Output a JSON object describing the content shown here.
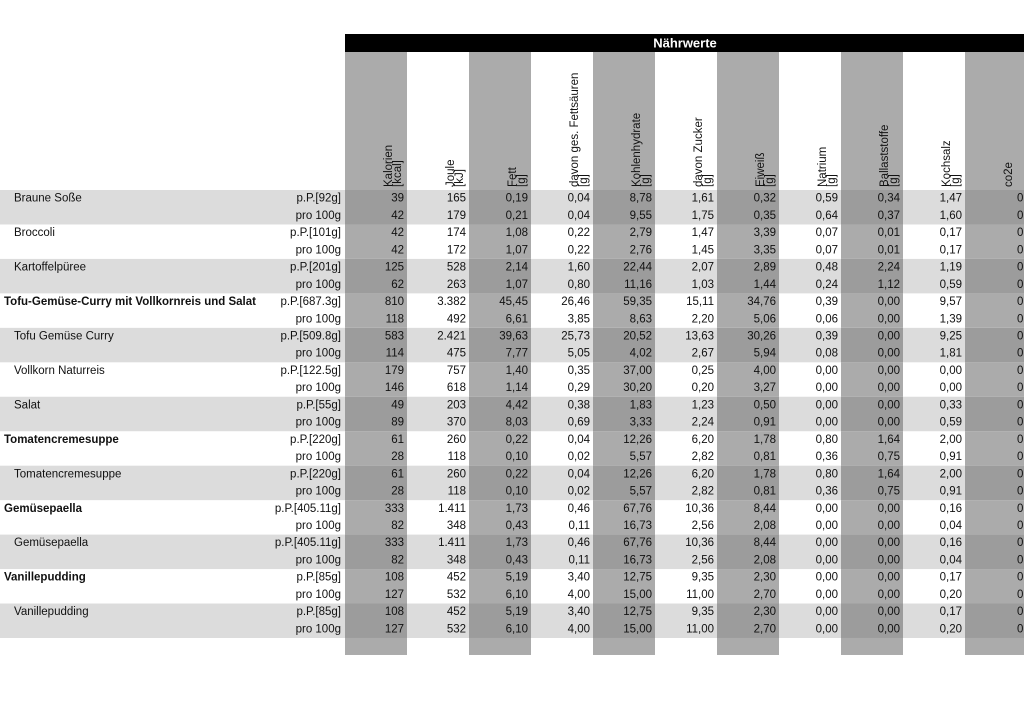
{
  "header": {
    "title": "Nährwerte",
    "columns": [
      {
        "label": "Kalorien",
        "unit": "[kcal]"
      },
      {
        "label": "Joule",
        "unit": "[kJ]"
      },
      {
        "label": "Fett",
        "unit": "[g]"
      },
      {
        "label": "davon ges. Fettsäuren",
        "unit": "[g]"
      },
      {
        "label": "Kohlenhydrate",
        "unit": "[g]"
      },
      {
        "label": "davon Zucker",
        "unit": "[g]"
      },
      {
        "label": "Eiweiß",
        "unit": "[g]"
      },
      {
        "label": "Natrium",
        "unit": "[g]"
      },
      {
        "label": "Ballaststoffe",
        "unit": "[g]"
      },
      {
        "label": "Kochsalz",
        "unit": "[g]"
      },
      {
        "label": "co2e"
      }
    ]
  },
  "table": {
    "items": [
      {
        "name": "Braune Soße",
        "bold": false,
        "rows": [
          {
            "portion": "p.P.[92g]",
            "values": [
              "39",
              "165",
              "0,19",
              "0,04",
              "8,78",
              "1,61",
              "0,32",
              "0,59",
              "0,34",
              "1,47",
              "0"
            ]
          },
          {
            "portion": "pro 100g",
            "values": [
              "42",
              "179",
              "0,21",
              "0,04",
              "9,55",
              "1,75",
              "0,35",
              "0,64",
              "0,37",
              "1,60",
              "0"
            ]
          }
        ]
      },
      {
        "name": "Broccoli",
        "bold": false,
        "rows": [
          {
            "portion": "p.P.[101g]",
            "values": [
              "42",
              "174",
              "1,08",
              "0,22",
              "2,79",
              "1,47",
              "3,39",
              "0,07",
              "0,01",
              "0,17",
              "0"
            ]
          },
          {
            "portion": "pro 100g",
            "values": [
              "42",
              "172",
              "1,07",
              "0,22",
              "2,76",
              "1,45",
              "3,35",
              "0,07",
              "0,01",
              "0,17",
              "0"
            ]
          }
        ]
      },
      {
        "name": "Kartoffelpüree",
        "bold": false,
        "rows": [
          {
            "portion": "p.P.[201g]",
            "values": [
              "125",
              "528",
              "2,14",
              "1,60",
              "22,44",
              "2,07",
              "2,89",
              "0,48",
              "2,24",
              "1,19",
              "0"
            ]
          },
          {
            "portion": "pro 100g",
            "values": [
              "62",
              "263",
              "1,07",
              "0,80",
              "11,16",
              "1,03",
              "1,44",
              "0,24",
              "1,12",
              "0,59",
              "0"
            ]
          }
        ]
      },
      {
        "name": "Tofu-Gemüse-Curry mit Vollkornreis und Salat",
        "bold": true,
        "rows": [
          {
            "portion": "p.P.[687.3g]",
            "values": [
              "810",
              "3.382",
              "45,45",
              "26,46",
              "59,35",
              "15,11",
              "34,76",
              "0,39",
              "0,00",
              "9,57",
              "0"
            ]
          },
          {
            "portion": "pro 100g",
            "values": [
              "118",
              "492",
              "6,61",
              "3,85",
              "8,63",
              "2,20",
              "5,06",
              "0,06",
              "0,00",
              "1,39",
              "0"
            ]
          }
        ]
      },
      {
        "name": "Tofu Gemüse Curry",
        "bold": false,
        "rows": [
          {
            "portion": "p.P.[509.8g]",
            "values": [
              "583",
              "2.421",
              "39,63",
              "25,73",
              "20,52",
              "13,63",
              "30,26",
              "0,39",
              "0,00",
              "9,25",
              "0"
            ]
          },
          {
            "portion": "pro 100g",
            "values": [
              "114",
              "475",
              "7,77",
              "5,05",
              "4,02",
              "2,67",
              "5,94",
              "0,08",
              "0,00",
              "1,81",
              "0"
            ]
          }
        ]
      },
      {
        "name": "Vollkorn Naturreis",
        "bold": false,
        "rows": [
          {
            "portion": "p.P.[122.5g]",
            "values": [
              "179",
              "757",
              "1,40",
              "0,35",
              "37,00",
              "0,25",
              "4,00",
              "0,00",
              "0,00",
              "0,00",
              "0"
            ]
          },
          {
            "portion": "pro 100g",
            "values": [
              "146",
              "618",
              "1,14",
              "0,29",
              "30,20",
              "0,20",
              "3,27",
              "0,00",
              "0,00",
              "0,00",
              "0"
            ]
          }
        ]
      },
      {
        "name": "Salat",
        "bold": false,
        "rows": [
          {
            "portion": "p.P.[55g]",
            "values": [
              "49",
              "203",
              "4,42",
              "0,38",
              "1,83",
              "1,23",
              "0,50",
              "0,00",
              "0,00",
              "0,33",
              "0"
            ]
          },
          {
            "portion": "pro 100g",
            "values": [
              "89",
              "370",
              "8,03",
              "0,69",
              "3,33",
              "2,24",
              "0,91",
              "0,00",
              "0,00",
              "0,59",
              "0"
            ]
          }
        ]
      },
      {
        "name": "Tomatencremesuppe",
        "bold": true,
        "rows": [
          {
            "portion": "p.P.[220g]",
            "values": [
              "61",
              "260",
              "0,22",
              "0,04",
              "12,26",
              "6,20",
              "1,78",
              "0,80",
              "1,64",
              "2,00",
              "0"
            ]
          },
          {
            "portion": "pro 100g",
            "values": [
              "28",
              "118",
              "0,10",
              "0,02",
              "5,57",
              "2,82",
              "0,81",
              "0,36",
              "0,75",
              "0,91",
              "0"
            ]
          }
        ]
      },
      {
        "name": "Tomatencremesuppe",
        "bold": false,
        "rows": [
          {
            "portion": "p.P.[220g]",
            "values": [
              "61",
              "260",
              "0,22",
              "0,04",
              "12,26",
              "6,20",
              "1,78",
              "0,80",
              "1,64",
              "2,00",
              "0"
            ]
          },
          {
            "portion": "pro 100g",
            "values": [
              "28",
              "118",
              "0,10",
              "0,02",
              "5,57",
              "2,82",
              "0,81",
              "0,36",
              "0,75",
              "0,91",
              "0"
            ]
          }
        ]
      },
      {
        "name": "Gemüsepaella",
        "bold": true,
        "rows": [
          {
            "portion": "p.P.[405.11g]",
            "values": [
              "333",
              "1.411",
              "1,73",
              "0,46",
              "67,76",
              "10,36",
              "8,44",
              "0,00",
              "0,00",
              "0,16",
              "0"
            ]
          },
          {
            "portion": "pro 100g",
            "values": [
              "82",
              "348",
              "0,43",
              "0,11",
              "16,73",
              "2,56",
              "2,08",
              "0,00",
              "0,00",
              "0,04",
              "0"
            ]
          }
        ]
      },
      {
        "name": "Gemüsepaella",
        "bold": false,
        "rows": [
          {
            "portion": "p.P.[405.11g]",
            "values": [
              "333",
              "1.411",
              "1,73",
              "0,46",
              "67,76",
              "10,36",
              "8,44",
              "0,00",
              "0,00",
              "0,16",
              "0"
            ]
          },
          {
            "portion": "pro 100g",
            "values": [
              "82",
              "348",
              "0,43",
              "0,11",
              "16,73",
              "2,56",
              "2,08",
              "0,00",
              "0,00",
              "0,04",
              "0"
            ]
          }
        ]
      },
      {
        "name": "Vanillepudding",
        "bold": true,
        "rows": [
          {
            "portion": "p.P.[85g]",
            "values": [
              "108",
              "452",
              "5,19",
              "3,40",
              "12,75",
              "9,35",
              "2,30",
              "0,00",
              "0,00",
              "0,17",
              "0"
            ]
          },
          {
            "portion": "pro 100g",
            "values": [
              "127",
              "532",
              "6,10",
              "4,00",
              "15,00",
              "11,00",
              "2,70",
              "0,00",
              "0,00",
              "0,20",
              "0"
            ]
          }
        ]
      },
      {
        "name": "Vanillepudding",
        "bold": false,
        "rows": [
          {
            "portion": "p.P.[85g]",
            "values": [
              "108",
              "452",
              "5,19",
              "3,40",
              "12,75",
              "9,35",
              "2,30",
              "0,00",
              "0,00",
              "0,17",
              "0"
            ]
          },
          {
            "portion": "pro 100g",
            "values": [
              "127",
              "532",
              "6,10",
              "4,00",
              "15,00",
              "11,00",
              "2,70",
              "0,00",
              "0,00",
              "0,20",
              "0"
            ]
          }
        ]
      }
    ]
  }
}
